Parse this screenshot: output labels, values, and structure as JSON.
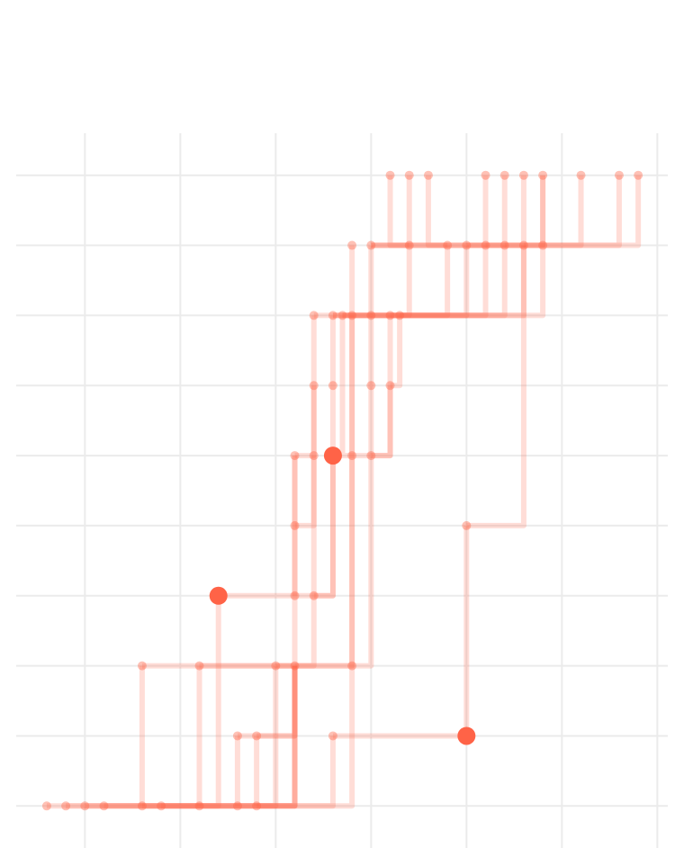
{
  "chart_data": {
    "type": "tree",
    "color": "#ff6347",
    "grid": true,
    "xlim": [
      -8.6,
      25.55
    ],
    "ylim": [
      0.4,
      10.6
    ],
    "xticks": [
      -5,
      0,
      5,
      10,
      15,
      20,
      25
    ],
    "yticks": [
      1,
      2,
      3,
      4,
      5,
      6,
      7,
      8,
      9,
      10
    ],
    "x": [
      11,
      12,
      13,
      16,
      17,
      18,
      19,
      21,
      23,
      24,
      9,
      10,
      12,
      14,
      15,
      16,
      17,
      18,
      19,
      7,
      8,
      8.5,
      9,
      10,
      11,
      11.5,
      7,
      8,
      10,
      11,
      6,
      7,
      8,
      9,
      10,
      6,
      15,
      2,
      6,
      7,
      -2,
      1,
      5,
      6,
      9,
      3,
      4,
      8,
      15,
      -7,
      -6,
      -5,
      -4,
      -2,
      -1,
      1,
      3,
      4
    ],
    "y": [
      10,
      10,
      10,
      10,
      10,
      10,
      10,
      10,
      10,
      10,
      9,
      9,
      9,
      9,
      9,
      9,
      9,
      9,
      9,
      8,
      8,
      8,
      8,
      8,
      8,
      8,
      7,
      7,
      7,
      7,
      6,
      6,
      6,
      6,
      6,
      5,
      5,
      4,
      4,
      4,
      3,
      3,
      3,
      3,
      3,
      2,
      2,
      2,
      2,
      1,
      1,
      1,
      1,
      1,
      1,
      1,
      1,
      1
    ],
    "size": [
      1,
      1,
      1,
      1,
      1,
      1,
      1,
      1,
      1,
      1,
      1,
      1,
      1,
      1,
      1,
      1,
      1,
      1,
      1,
      1,
      1,
      1,
      1,
      1,
      1,
      1,
      1,
      1,
      1,
      1,
      1,
      1,
      2,
      1,
      1,
      1,
      1,
      2,
      1,
      1,
      1,
      1,
      1,
      1,
      1,
      1,
      1,
      1,
      2,
      1,
      1,
      1,
      1,
      1,
      1,
      1,
      1,
      1
    ],
    "links": [
      [
        11,
        9
      ],
      [
        11,
        8
      ],
      [
        11,
        7
      ],
      [
        12,
        0
      ],
      [
        12,
        1
      ],
      [
        13,
        2
      ],
      [
        14,
        3
      ],
      [
        15,
        4
      ],
      [
        16,
        5
      ],
      [
        17,
        6
      ],
      [
        18,
        6
      ],
      [
        19,
        18
      ],
      [
        20,
        15
      ],
      [
        21,
        16
      ],
      [
        22,
        10
      ],
      [
        23,
        11
      ],
      [
        24,
        12
      ],
      [
        25,
        13
      ],
      [
        20,
        14
      ],
      [
        21,
        17
      ],
      [
        26,
        19
      ],
      [
        27,
        20
      ],
      [
        28,
        23
      ],
      [
        29,
        24
      ],
      [
        29,
        25
      ],
      [
        30,
        26
      ],
      [
        31,
        26
      ],
      [
        32,
        27
      ],
      [
        33,
        29
      ],
      [
        34,
        29
      ],
      [
        33,
        21
      ],
      [
        34,
        28
      ],
      [
        35,
        31
      ],
      [
        36,
        17
      ],
      [
        37,
        32
      ],
      [
        38,
        30
      ],
      [
        39,
        32
      ],
      [
        40,
        34
      ],
      [
        41,
        22
      ],
      [
        42,
        30
      ],
      [
        43,
        31
      ],
      [
        44,
        22
      ],
      [
        45,
        43
      ],
      [
        46,
        43
      ],
      [
        47,
        48
      ],
      [
        48,
        36
      ],
      [
        49,
        43
      ],
      [
        50,
        43
      ],
      [
        51,
        43
      ],
      [
        52,
        47
      ],
      [
        53,
        40
      ],
      [
        53,
        37
      ],
      [
        54,
        42
      ],
      [
        55,
        41
      ],
      [
        56,
        45
      ],
      [
        57,
        46
      ],
      [
        57,
        44
      ]
    ]
  }
}
